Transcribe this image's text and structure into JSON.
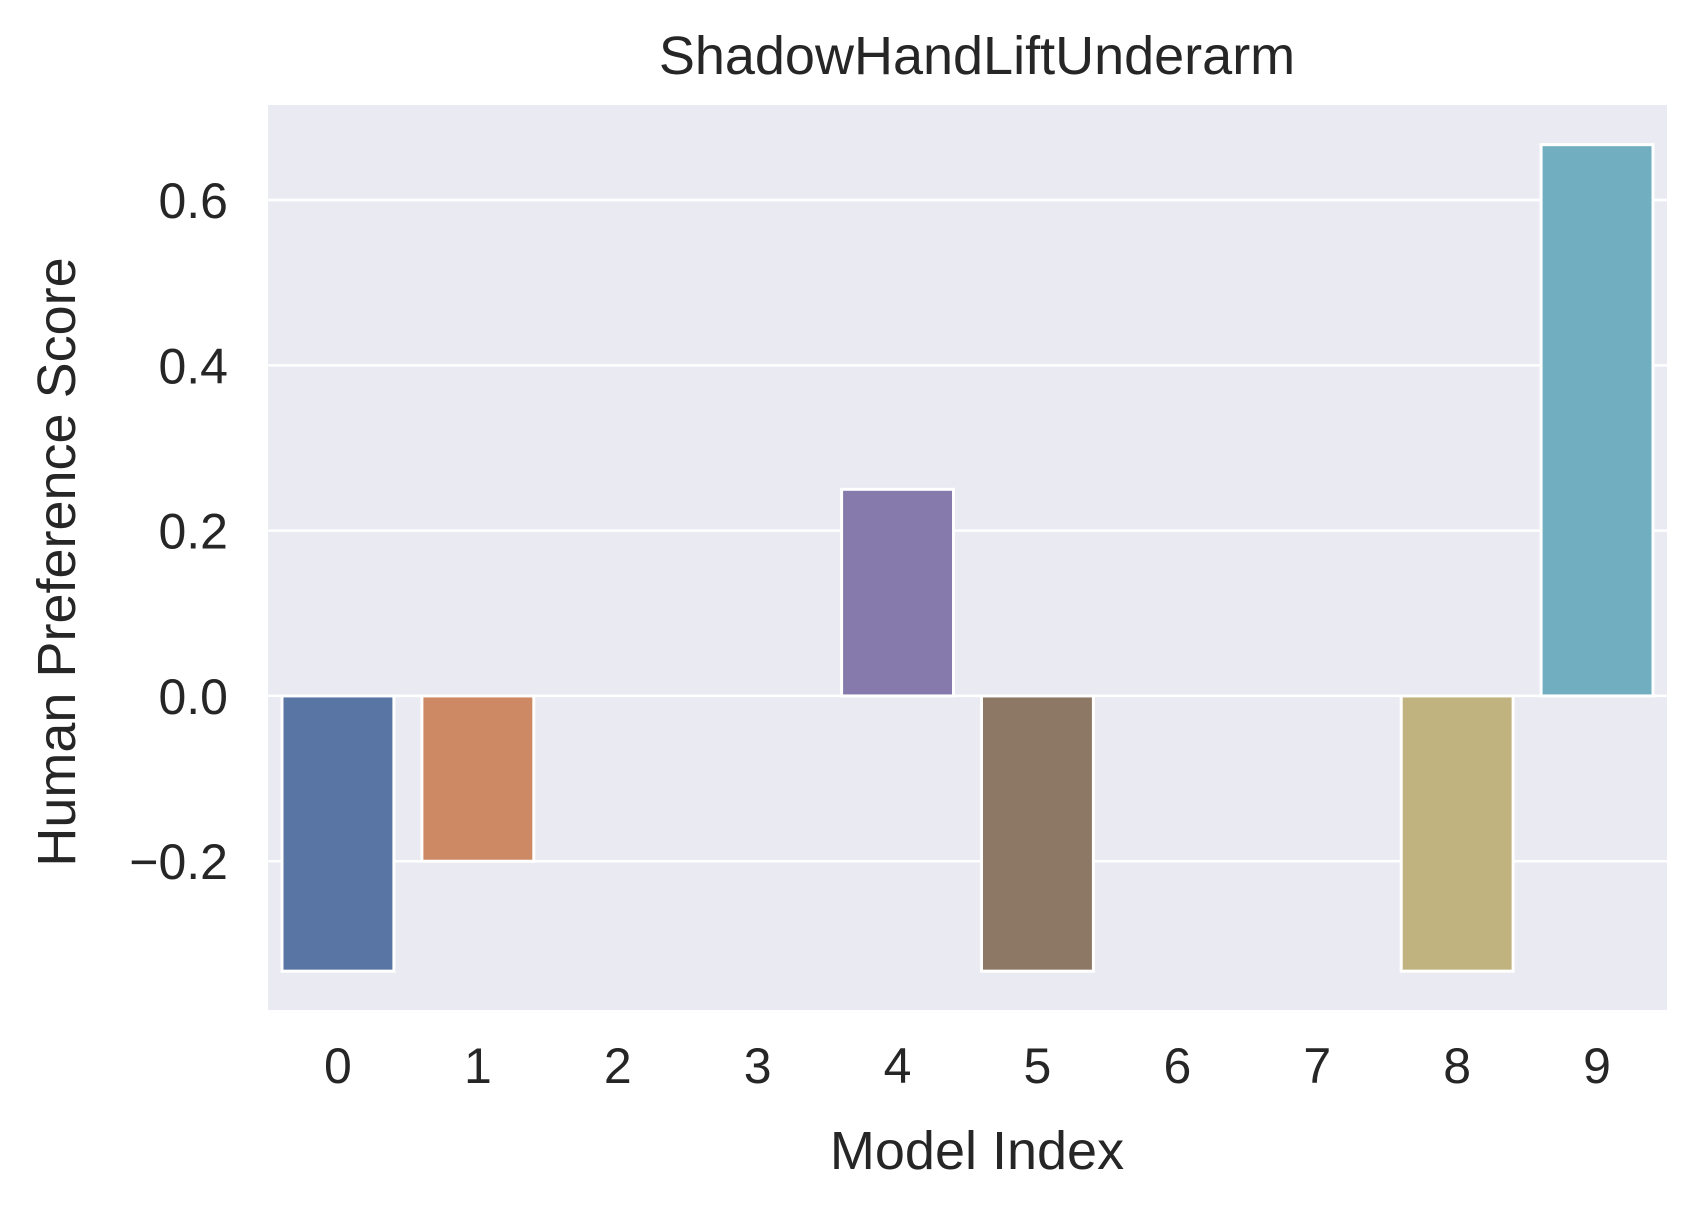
{
  "chart_data": {
    "type": "bar",
    "title": "ShadowHandLiftUnderarm",
    "xlabel": "Model Index",
    "ylabel": "Human Preference Score",
    "categories": [
      "0",
      "1",
      "2",
      "3",
      "4",
      "5",
      "6",
      "7",
      "8",
      "9"
    ],
    "values": [
      -0.333,
      -0.2,
      0,
      0,
      0.25,
      -0.333,
      0,
      0,
      -0.333,
      0.667
    ],
    "colors": [
      "#5875a4",
      "#cc8963",
      "#5f9e6e",
      "#b55d60",
      "#857aab",
      "#8d7866",
      "#d095bf",
      "#8c8c8c",
      "#c1b37f",
      "#71aec0"
    ],
    "ylim": [
      -0.38,
      0.715
    ],
    "yticks": [
      -0.2,
      0.0,
      0.2,
      0.4,
      0.6
    ],
    "ytick_labels": [
      "−0.2",
      "0.0",
      "0.2",
      "0.4",
      "0.6"
    ],
    "grid": true,
    "background": "#eaeaf2",
    "grid_color": "#ffffff"
  }
}
